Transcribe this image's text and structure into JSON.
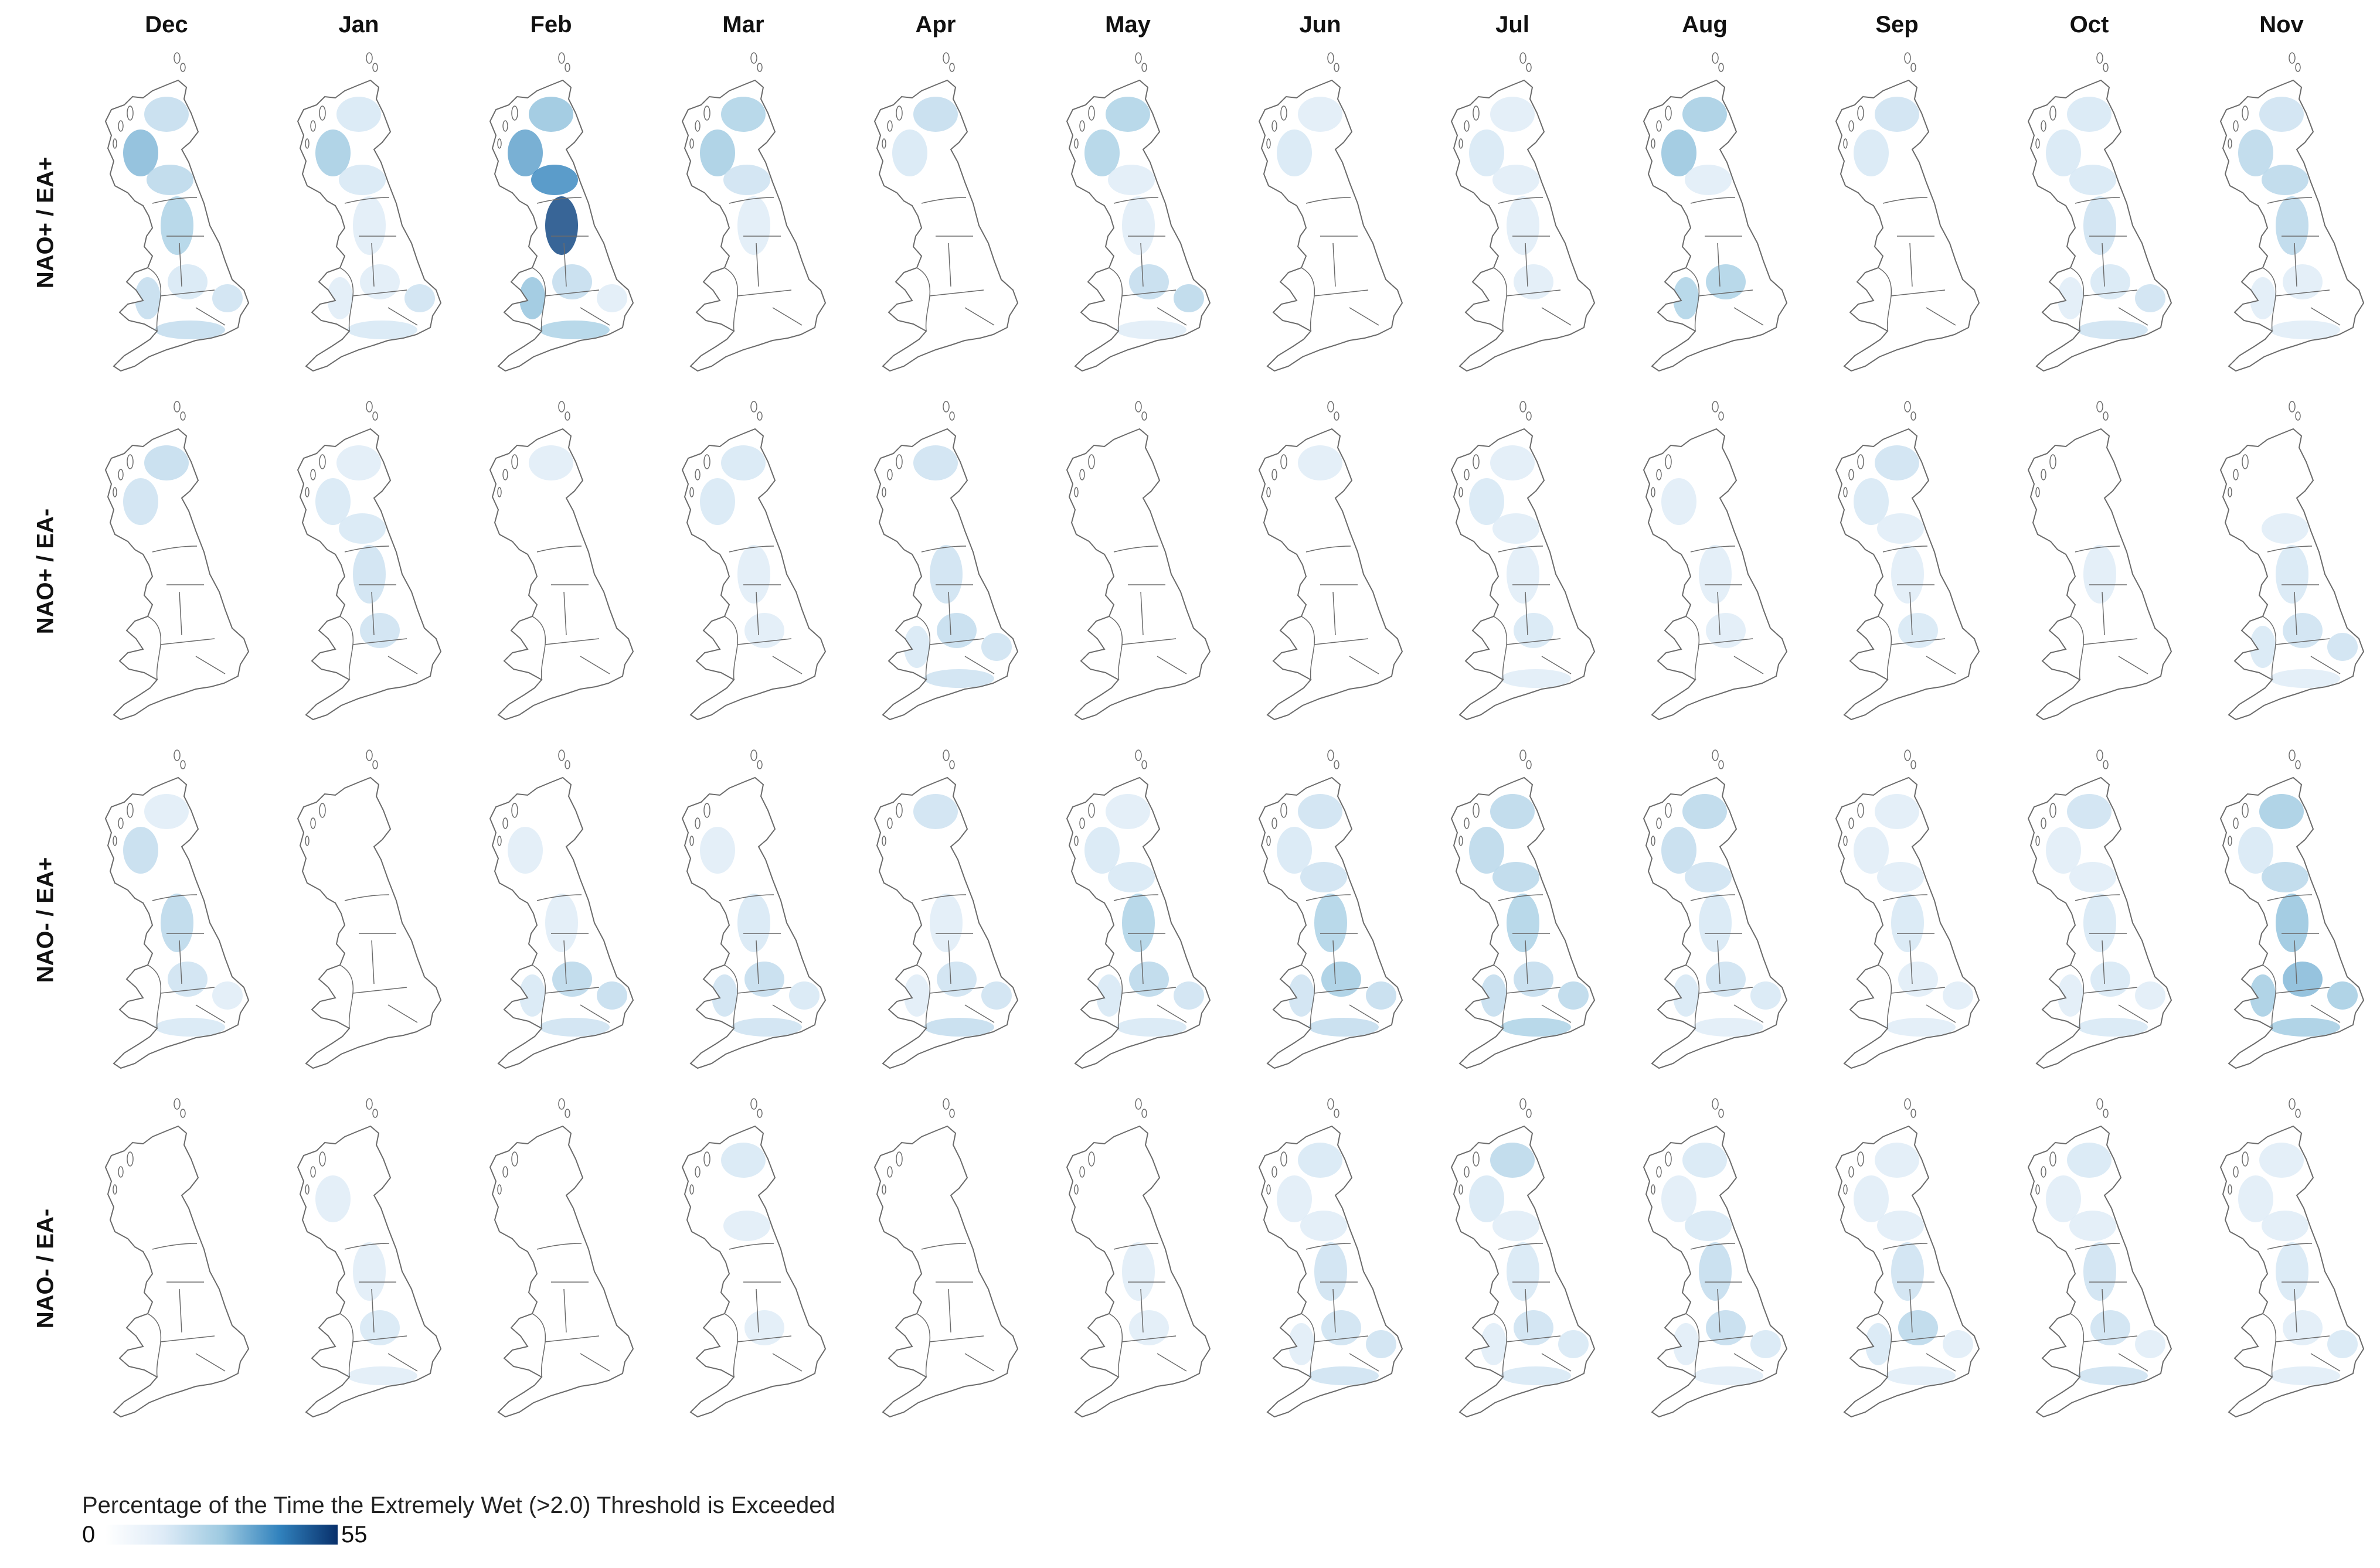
{
  "figure": {
    "months": [
      "Dec",
      "Jan",
      "Feb",
      "Mar",
      "Apr",
      "May",
      "Jun",
      "Jul",
      "Aug",
      "Sep",
      "Oct",
      "Nov"
    ],
    "rows": [
      "NAO+ / EA+",
      "NAO+ / EA-",
      "NAO- / EA+",
      "NAO- / EA-"
    ],
    "colors": {
      "outline": "#6b6b6b",
      "scale": [
        "#ffffff",
        "#deebf7",
        "#9ecae1",
        "#3182bd",
        "#08306b"
      ]
    },
    "legend": {
      "title": "Percentage of the Time the Extremely Wet (>2.0) Threshold is Exceeded",
      "min": "0",
      "max": "55"
    }
  },
  "region_intensity": {
    "NAO+ / EA+": {
      "Dec": {
        "north_scotland": 0.2,
        "west_scotland": 0.45,
        "south_scotland": 0.25,
        "north_england": 0.3,
        "wales": 0.2,
        "midlands": 0.1,
        "east_england": 0.15,
        "south_england": 0.2
      },
      "Jan": {
        "north_scotland": 0.1,
        "west_scotland": 0.35,
        "south_scotland": 0.1,
        "north_england": 0.05,
        "wales": 0.05,
        "midlands": 0.05,
        "east_england": 0.15,
        "south_england": 0.1
      },
      "Feb": {
        "north_scotland": 0.4,
        "west_scotland": 0.55,
        "south_scotland": 0.65,
        "north_england": 0.9,
        "wales": 0.4,
        "midlands": 0.2,
        "east_england": 0.05,
        "south_england": 0.3
      },
      "Mar": {
        "north_scotland": 0.3,
        "west_scotland": 0.35,
        "south_scotland": 0.15,
        "north_england": 0.05,
        "wales": 0.0,
        "midlands": 0.0,
        "east_england": 0.0,
        "south_england": 0.0
      },
      "Apr": {
        "north_scotland": 0.2,
        "west_scotland": 0.1,
        "south_scotland": 0.0,
        "north_england": 0.0,
        "wales": 0.0,
        "midlands": 0.0,
        "east_england": 0.0,
        "south_england": 0.0
      },
      "May": {
        "north_scotland": 0.3,
        "west_scotland": 0.3,
        "south_scotland": 0.05,
        "north_england": 0.05,
        "wales": 0.0,
        "midlands": 0.2,
        "east_england": 0.25,
        "south_england": 0.05
      },
      "Jun": {
        "north_scotland": 0.05,
        "west_scotland": 0.1,
        "south_scotland": 0.0,
        "north_england": 0.0,
        "wales": 0.0,
        "midlands": 0.0,
        "east_england": 0.0,
        "south_england": 0.0
      },
      "Jul": {
        "north_scotland": 0.05,
        "west_scotland": 0.1,
        "south_scotland": 0.05,
        "north_england": 0.05,
        "wales": 0.0,
        "midlands": 0.05,
        "east_england": 0.0,
        "south_england": 0.0
      },
      "Aug": {
        "north_scotland": 0.35,
        "west_scotland": 0.4,
        "south_scotland": 0.05,
        "north_england": 0.0,
        "wales": 0.3,
        "midlands": 0.3,
        "east_england": 0.0,
        "south_england": 0.0
      },
      "Sep": {
        "north_scotland": 0.15,
        "west_scotland": 0.1,
        "south_scotland": 0.0,
        "north_england": 0.0,
        "wales": 0.0,
        "midlands": 0.0,
        "east_england": 0.0,
        "south_england": 0.0
      },
      "Oct": {
        "north_scotland": 0.1,
        "west_scotland": 0.1,
        "south_scotland": 0.1,
        "north_england": 0.15,
        "wales": 0.05,
        "midlands": 0.1,
        "east_england": 0.15,
        "south_england": 0.15
      },
      "Nov": {
        "north_scotland": 0.15,
        "west_scotland": 0.25,
        "south_scotland": 0.25,
        "north_england": 0.25,
        "wales": 0.05,
        "midlands": 0.05,
        "east_england": 0.0,
        "south_england": 0.05
      }
    },
    "NAO+ / EA-": {
      "Dec": {
        "north_scotland": 0.2,
        "west_scotland": 0.15,
        "south_scotland": 0.0,
        "north_england": 0.0,
        "wales": 0.0,
        "midlands": 0.0,
        "east_england": 0.0,
        "south_england": 0.0
      },
      "Jan": {
        "north_scotland": 0.05,
        "west_scotland": 0.1,
        "south_scotland": 0.1,
        "north_england": 0.15,
        "wales": 0.0,
        "midlands": 0.15,
        "east_england": 0.0,
        "south_england": 0.0
      },
      "Feb": {
        "north_scotland": 0.05,
        "west_scotland": 0.0,
        "south_scotland": 0.0,
        "north_england": 0.0,
        "wales": 0.0,
        "midlands": 0.0,
        "east_england": 0.0,
        "south_england": 0.0
      },
      "Mar": {
        "north_scotland": 0.1,
        "west_scotland": 0.1,
        "south_scotland": 0.0,
        "north_england": 0.05,
        "wales": 0.0,
        "midlands": 0.05,
        "east_england": 0.0,
        "south_england": 0.0
      },
      "Apr": {
        "north_scotland": 0.15,
        "west_scotland": 0.0,
        "south_scotland": 0.0,
        "north_england": 0.15,
        "wales": 0.1,
        "midlands": 0.2,
        "east_england": 0.15,
        "south_england": 0.15
      },
      "May": {
        "north_scotland": 0.0,
        "west_scotland": 0.0,
        "south_scotland": 0.0,
        "north_england": 0.0,
        "wales": 0.0,
        "midlands": 0.0,
        "east_england": 0.0,
        "south_england": 0.0
      },
      "Jun": {
        "north_scotland": 0.05,
        "west_scotland": 0.0,
        "south_scotland": 0.0,
        "north_england": 0.0,
        "wales": 0.0,
        "midlands": 0.0,
        "east_england": 0.0,
        "south_england": 0.0
      },
      "Jul": {
        "north_scotland": 0.05,
        "west_scotland": 0.1,
        "south_scotland": 0.05,
        "north_england": 0.05,
        "wales": 0.0,
        "midlands": 0.1,
        "east_england": 0.0,
        "south_england": 0.05
      },
      "Aug": {
        "north_scotland": 0.0,
        "west_scotland": 0.05,
        "south_scotland": 0.0,
        "north_england": 0.05,
        "wales": 0.0,
        "midlands": 0.05,
        "east_england": 0.0,
        "south_england": 0.0
      },
      "Sep": {
        "north_scotland": 0.15,
        "west_scotland": 0.1,
        "south_scotland": 0.05,
        "north_england": 0.05,
        "wales": 0.0,
        "midlands": 0.1,
        "east_england": 0.0,
        "south_england": 0.0
      },
      "Oct": {
        "north_scotland": 0.0,
        "west_scotland": 0.0,
        "south_scotland": 0.0,
        "north_england": 0.05,
        "wales": 0.0,
        "midlands": 0.0,
        "east_england": 0.0,
        "south_england": 0.0
      },
      "Nov": {
        "north_scotland": 0.0,
        "west_scotland": 0.0,
        "south_scotland": 0.05,
        "north_england": 0.1,
        "wales": 0.1,
        "midlands": 0.15,
        "east_england": 0.15,
        "south_england": 0.05
      }
    },
    "NAO- / EA+": {
      "Dec": {
        "north_scotland": 0.05,
        "west_scotland": 0.2,
        "south_scotland": 0.0,
        "north_england": 0.25,
        "wales": 0.0,
        "midlands": 0.15,
        "east_england": 0.05,
        "south_england": 0.1
      },
      "Jan": {
        "north_scotland": 0.0,
        "west_scotland": 0.0,
        "south_scotland": 0.0,
        "north_england": 0.0,
        "wales": 0.0,
        "midlands": 0.0,
        "east_england": 0.0,
        "south_england": 0.0
      },
      "Feb": {
        "north_scotland": 0.0,
        "west_scotland": 0.05,
        "south_scotland": 0.0,
        "north_england": 0.05,
        "wales": 0.1,
        "midlands": 0.25,
        "east_england": 0.2,
        "south_england": 0.15
      },
      "Mar": {
        "north_scotland": 0.0,
        "west_scotland": 0.05,
        "south_scotland": 0.0,
        "north_england": 0.1,
        "wales": 0.15,
        "midlands": 0.2,
        "east_england": 0.1,
        "south_england": 0.15
      },
      "Apr": {
        "north_scotland": 0.15,
        "west_scotland": 0.0,
        "south_scotland": 0.0,
        "north_england": 0.05,
        "wales": 0.05,
        "midlands": 0.15,
        "east_england": 0.15,
        "south_england": 0.2
      },
      "May": {
        "north_scotland": 0.05,
        "west_scotland": 0.1,
        "south_scotland": 0.1,
        "north_england": 0.3,
        "wales": 0.1,
        "midlands": 0.25,
        "east_england": 0.15,
        "south_england": 0.1
      },
      "Jun": {
        "north_scotland": 0.15,
        "west_scotland": 0.1,
        "south_scotland": 0.15,
        "north_england": 0.3,
        "wales": 0.15,
        "midlands": 0.35,
        "east_england": 0.2,
        "south_england": 0.2
      },
      "Jul": {
        "north_scotland": 0.25,
        "west_scotland": 0.25,
        "south_scotland": 0.25,
        "north_england": 0.3,
        "wales": 0.2,
        "midlands": 0.2,
        "east_england": 0.25,
        "south_england": 0.3
      },
      "Aug": {
        "north_scotland": 0.25,
        "west_scotland": 0.2,
        "south_scotland": 0.15,
        "north_england": 0.1,
        "wales": 0.1,
        "midlands": 0.15,
        "east_england": 0.1,
        "south_england": 0.05
      },
      "Sep": {
        "north_scotland": 0.05,
        "west_scotland": 0.05,
        "south_scotland": 0.05,
        "north_england": 0.1,
        "wales": 0.0,
        "midlands": 0.05,
        "east_england": 0.05,
        "south_england": 0.05
      },
      "Oct": {
        "north_scotland": 0.15,
        "west_scotland": 0.05,
        "south_scotland": 0.05,
        "north_england": 0.1,
        "wales": 0.05,
        "midlands": 0.1,
        "east_england": 0.05,
        "south_england": 0.1
      },
      "Nov": {
        "north_scotland": 0.35,
        "west_scotland": 0.1,
        "south_scotland": 0.25,
        "north_england": 0.4,
        "wales": 0.35,
        "midlands": 0.45,
        "east_england": 0.35,
        "south_england": 0.35
      }
    },
    "NAO- / EA-": {
      "Dec": {
        "north_scotland": 0.0,
        "west_scotland": 0.0,
        "south_scotland": 0.0,
        "north_england": 0.0,
        "wales": 0.0,
        "midlands": 0.0,
        "east_england": 0.0,
        "south_england": 0.0
      },
      "Jan": {
        "north_scotland": 0.0,
        "west_scotland": 0.05,
        "south_scotland": 0.0,
        "north_england": 0.05,
        "wales": 0.0,
        "midlands": 0.1,
        "east_england": 0.0,
        "south_england": 0.05
      },
      "Feb": {
        "north_scotland": 0.0,
        "west_scotland": 0.0,
        "south_scotland": 0.0,
        "north_england": 0.0,
        "wales": 0.0,
        "midlands": 0.0,
        "east_england": 0.0,
        "south_england": 0.0
      },
      "Mar": {
        "north_scotland": 0.1,
        "west_scotland": 0.0,
        "south_scotland": 0.05,
        "north_england": 0.0,
        "wales": 0.0,
        "midlands": 0.05,
        "east_england": 0.0,
        "south_england": 0.0
      },
      "Apr": {
        "north_scotland": 0.0,
        "west_scotland": 0.0,
        "south_scotland": 0.0,
        "north_england": 0.0,
        "wales": 0.0,
        "midlands": 0.0,
        "east_england": 0.0,
        "south_england": 0.0
      },
      "May": {
        "north_scotland": 0.0,
        "west_scotland": 0.0,
        "south_scotland": 0.0,
        "north_england": 0.05,
        "wales": 0.0,
        "midlands": 0.05,
        "east_england": 0.0,
        "south_england": 0.0
      },
      "Jun": {
        "north_scotland": 0.1,
        "west_scotland": 0.05,
        "south_scotland": 0.05,
        "north_england": 0.15,
        "wales": 0.05,
        "midlands": 0.15,
        "east_england": 0.15,
        "south_england": 0.15
      },
      "Jul": {
        "north_scotland": 0.25,
        "west_scotland": 0.1,
        "south_scotland": 0.05,
        "north_england": 0.1,
        "wales": 0.05,
        "midlands": 0.15,
        "east_england": 0.1,
        "south_england": 0.1
      },
      "Aug": {
        "north_scotland": 0.1,
        "west_scotland": 0.05,
        "south_scotland": 0.1,
        "north_england": 0.2,
        "wales": 0.05,
        "midlands": 0.2,
        "east_england": 0.1,
        "south_england": 0.05
      },
      "Sep": {
        "north_scotland": 0.05,
        "west_scotland": 0.05,
        "south_scotland": 0.05,
        "north_england": 0.15,
        "wales": 0.1,
        "midlands": 0.25,
        "east_england": 0.05,
        "south_england": 0.05
      },
      "Oct": {
        "north_scotland": 0.1,
        "west_scotland": 0.05,
        "south_scotland": 0.05,
        "north_england": 0.15,
        "wales": 0.0,
        "midlands": 0.15,
        "east_england": 0.05,
        "south_england": 0.15
      },
      "Nov": {
        "north_scotland": 0.05,
        "west_scotland": 0.05,
        "south_scotland": 0.05,
        "north_england": 0.1,
        "wales": 0.0,
        "midlands": 0.05,
        "east_england": 0.1,
        "south_england": 0.05
      }
    }
  }
}
